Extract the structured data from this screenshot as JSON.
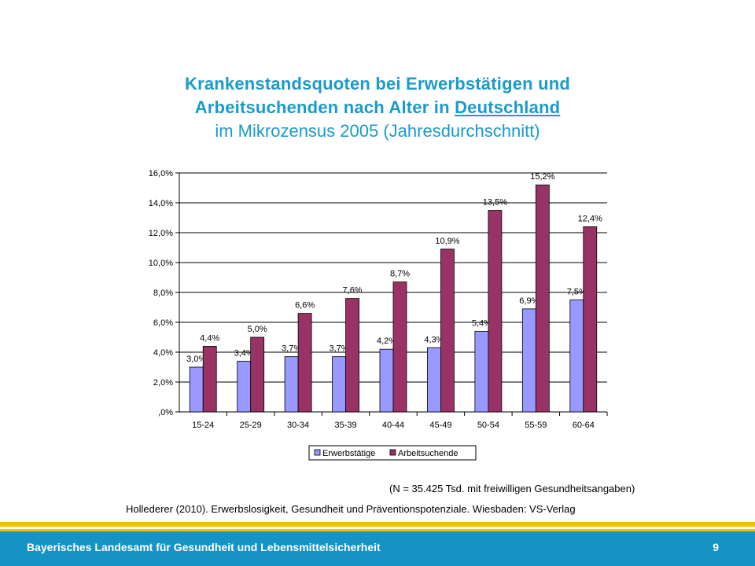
{
  "title": {
    "line1": "Krankenstandsquoten bei Erwerbstätigen und",
    "line2_prefix": "Arbeitsuchenden nach Alter in ",
    "line2_link": "Deutschland",
    "line3": "im Mikrozensus 2005 (Jahresdurchschnitt)"
  },
  "chart_data": {
    "type": "bar",
    "title": "Krankenstandsquoten bei Erwerbstätigen und Arbeitsuchenden nach Alter in Deutschland im Mikrozensus 2005 (Jahresdurchschnitt)",
    "categories": [
      "15-24",
      "25-29",
      "30-34",
      "35-39",
      "40-44",
      "45-49",
      "50-54",
      "55-59",
      "60-64"
    ],
    "series": [
      {
        "name": "Erwerbstätige",
        "color": "#9999ff",
        "values": [
          3.0,
          3.4,
          3.7,
          3.7,
          4.2,
          4.3,
          5.4,
          6.9,
          7.5
        ],
        "labels": [
          "3,0%",
          "3,4%",
          "3,7%",
          "3,7%",
          "4,2%",
          "4,3%",
          "5,4%",
          "6,9%",
          "7,5%"
        ]
      },
      {
        "name": "Arbeitsuchende",
        "color": "#993366",
        "values": [
          4.4,
          5.0,
          6.6,
          7.6,
          8.7,
          10.9,
          13.5,
          15.2,
          12.4
        ],
        "labels": [
          "4,4%",
          "5,0%",
          "6,6%",
          "7,6%",
          "8,7%",
          "10,9%",
          "13,5%",
          "15,2%",
          "12,4%"
        ]
      }
    ],
    "yticks": [
      ",0%",
      "2,0%",
      "4,0%",
      "6,0%",
      "8,0%",
      "10,0%",
      "12,0%",
      "14,0%",
      "16,0%"
    ],
    "ylim": [
      0,
      16
    ],
    "ystep": 2,
    "grid": true,
    "legend": "bottom",
    "xlabel": "",
    "ylabel": ""
  },
  "note": "(N = 35.425 Tsd. mit freiwilligen Gesundheitsangaben)",
  "source": "Hollederer (2010). Erwerbslosigkeit, Gesundheit und Präventionspotenziale. Wiesbaden: VS-Verlag",
  "footer": {
    "org": "Bayerisches Landesamt für Gesundheit und Lebensmittelsicherheit",
    "page": "9"
  }
}
